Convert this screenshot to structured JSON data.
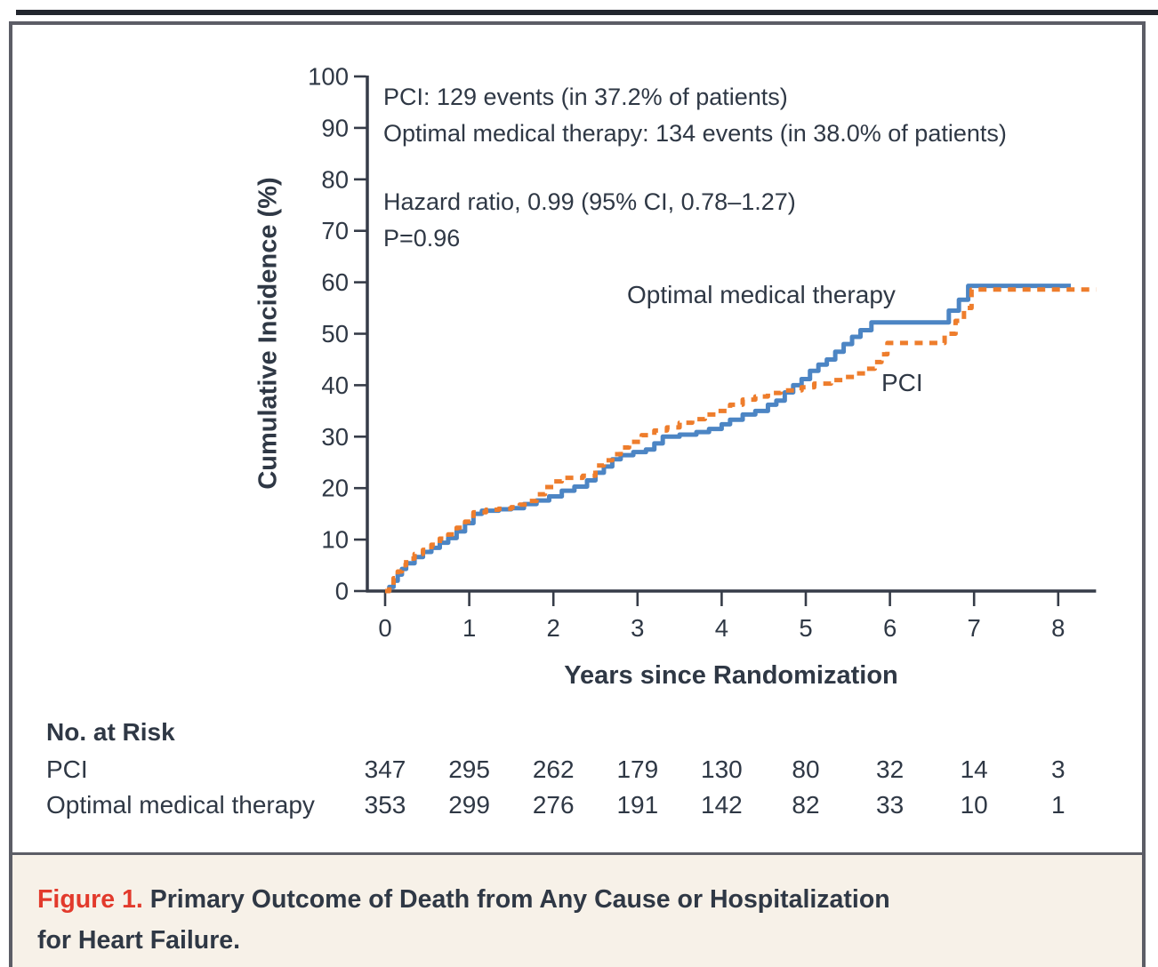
{
  "annotations": {
    "pci_events": "PCI: 129 events (in 37.2% of patients)",
    "omt_events": "Optimal medical therapy: 134 events (in 38.0% of patients)",
    "hazard_ratio": "Hazard ratio, 0.99 (95% CI, 0.78–1.27)",
    "p_value": "P=0.96"
  },
  "curve_labels": {
    "omt": "Optimal medical therapy",
    "pci": "PCI"
  },
  "risk_table": {
    "heading": "No. at Risk",
    "rows": [
      {
        "label": "PCI",
        "values": [
          347,
          295,
          262,
          179,
          130,
          80,
          32,
          14,
          3
        ]
      },
      {
        "label": "Optimal medical therapy",
        "values": [
          353,
          299,
          276,
          191,
          142,
          82,
          33,
          10,
          1
        ]
      }
    ]
  },
  "figure": {
    "caption_label": "Figure 1.",
    "caption_line1": "Primary Outcome of Death from Any Cause or Hospitalization",
    "caption_line2": "for Heart Failure."
  },
  "colors": {
    "pci_orange": "#ee7d2c",
    "omt_blue": "#4c85c4",
    "axis": "#363c48",
    "caption_red": "#e23a2c",
    "caption_bg": "#f7f1e8",
    "frame_border": "#5c5d66"
  },
  "chart_data": {
    "type": "line",
    "subtype": "step-after-cumulative-incidence",
    "title": "",
    "xlabel": "Years since Randomization",
    "ylabel": "Cumulative Incidence (%)",
    "xlim": [
      0,
      8.45
    ],
    "ylim": [
      0,
      100
    ],
    "x_ticks": [
      0,
      1,
      2,
      3,
      4,
      5,
      6,
      7,
      8
    ],
    "y_ticks": [
      0,
      10,
      20,
      30,
      40,
      50,
      60,
      70,
      80,
      90,
      100
    ],
    "grid": false,
    "legend_position": "inline-curve-labels",
    "series": [
      {
        "name": "Optimal medical therapy",
        "color": "#4c85c4",
        "style": "solid",
        "points": [
          [
            0,
            0
          ],
          [
            0.05,
            0.8
          ],
          [
            0.1,
            2
          ],
          [
            0.15,
            3.2
          ],
          [
            0.2,
            4.3
          ],
          [
            0.25,
            5.4
          ],
          [
            0.35,
            6.6
          ],
          [
            0.45,
            7.6
          ],
          [
            0.55,
            8.4
          ],
          [
            0.65,
            9.4
          ],
          [
            0.75,
            10.3
          ],
          [
            0.85,
            11.6
          ],
          [
            0.95,
            13.2
          ],
          [
            1.05,
            15
          ],
          [
            1.15,
            15.6
          ],
          [
            1.35,
            15.9
          ],
          [
            1.5,
            16.1
          ],
          [
            1.65,
            16.9
          ],
          [
            1.8,
            17.6
          ],
          [
            1.95,
            18.4
          ],
          [
            2.1,
            19.5
          ],
          [
            2.25,
            20.3
          ],
          [
            2.4,
            21.5
          ],
          [
            2.5,
            23
          ],
          [
            2.6,
            24.2
          ],
          [
            2.7,
            25.6
          ],
          [
            2.8,
            26.4
          ],
          [
            2.95,
            27
          ],
          [
            3.1,
            27.5
          ],
          [
            3.2,
            28.7
          ],
          [
            3.3,
            30
          ],
          [
            3.5,
            30.4
          ],
          [
            3.7,
            30.9
          ],
          [
            3.85,
            31.5
          ],
          [
            4.0,
            32.4
          ],
          [
            4.1,
            33.3
          ],
          [
            4.25,
            34.3
          ],
          [
            4.4,
            35
          ],
          [
            4.55,
            36.2
          ],
          [
            4.65,
            37
          ],
          [
            4.75,
            38.6
          ],
          [
            4.85,
            40
          ],
          [
            4.95,
            41.2
          ],
          [
            5.05,
            42.8
          ],
          [
            5.15,
            44
          ],
          [
            5.25,
            45
          ],
          [
            5.35,
            46.5
          ],
          [
            5.45,
            48
          ],
          [
            5.55,
            49.4
          ],
          [
            5.65,
            50.7
          ],
          [
            5.78,
            52.2
          ],
          [
            6.6,
            52.2
          ],
          [
            6.7,
            54.5
          ],
          [
            6.82,
            56.6
          ],
          [
            6.93,
            59.3
          ],
          [
            8.15,
            59.3
          ]
        ]
      },
      {
        "name": "PCI",
        "color": "#ee7d2c",
        "style": "dashed",
        "points": [
          [
            0,
            0
          ],
          [
            0.05,
            1.2
          ],
          [
            0.1,
            2.5
          ],
          [
            0.15,
            3.8
          ],
          [
            0.2,
            5
          ],
          [
            0.25,
            6.3
          ],
          [
            0.35,
            7.2
          ],
          [
            0.45,
            8
          ],
          [
            0.55,
            9
          ],
          [
            0.65,
            10.2
          ],
          [
            0.75,
            11
          ],
          [
            0.85,
            12.3
          ],
          [
            0.95,
            13.5
          ],
          [
            1.05,
            15.3
          ],
          [
            1.2,
            15.8
          ],
          [
            1.35,
            16
          ],
          [
            1.5,
            16.3
          ],
          [
            1.6,
            16.8
          ],
          [
            1.7,
            17.5
          ],
          [
            1.8,
            18.8
          ],
          [
            1.9,
            20.2
          ],
          [
            2.0,
            21.3
          ],
          [
            2.1,
            22
          ],
          [
            2.35,
            22.4
          ],
          [
            2.5,
            24.4
          ],
          [
            2.6,
            25.4
          ],
          [
            2.7,
            26.6
          ],
          [
            2.8,
            27.9
          ],
          [
            2.9,
            29
          ],
          [
            3.05,
            30.3
          ],
          [
            3.2,
            31.2
          ],
          [
            3.35,
            31.8
          ],
          [
            3.5,
            32.7
          ],
          [
            3.65,
            33.4
          ],
          [
            3.8,
            34.3
          ],
          [
            3.95,
            35
          ],
          [
            4.1,
            36.2
          ],
          [
            4.25,
            37.2
          ],
          [
            4.4,
            37.8
          ],
          [
            4.55,
            38.5
          ],
          [
            4.7,
            39
          ],
          [
            4.95,
            39.6
          ],
          [
            5.1,
            40.3
          ],
          [
            5.3,
            41
          ],
          [
            5.45,
            41.6
          ],
          [
            5.6,
            42.3
          ],
          [
            5.72,
            43.2
          ],
          [
            5.82,
            44.5
          ],
          [
            5.9,
            46
          ],
          [
            5.97,
            48.2
          ],
          [
            6.55,
            48.2
          ],
          [
            6.65,
            50
          ],
          [
            6.78,
            52.5
          ],
          [
            6.88,
            55
          ],
          [
            6.97,
            58.6
          ],
          [
            8.45,
            58.6
          ]
        ]
      }
    ],
    "events_summary": {
      "pci": {
        "events": 129,
        "percent_of_patients": 37.2
      },
      "optimal_medical_therapy": {
        "events": 134,
        "percent_of_patients": 38.0
      }
    },
    "hazard_ratio": {
      "value": 0.99,
      "ci_95": [
        0.78,
        1.27
      ],
      "p_value": 0.96
    }
  }
}
